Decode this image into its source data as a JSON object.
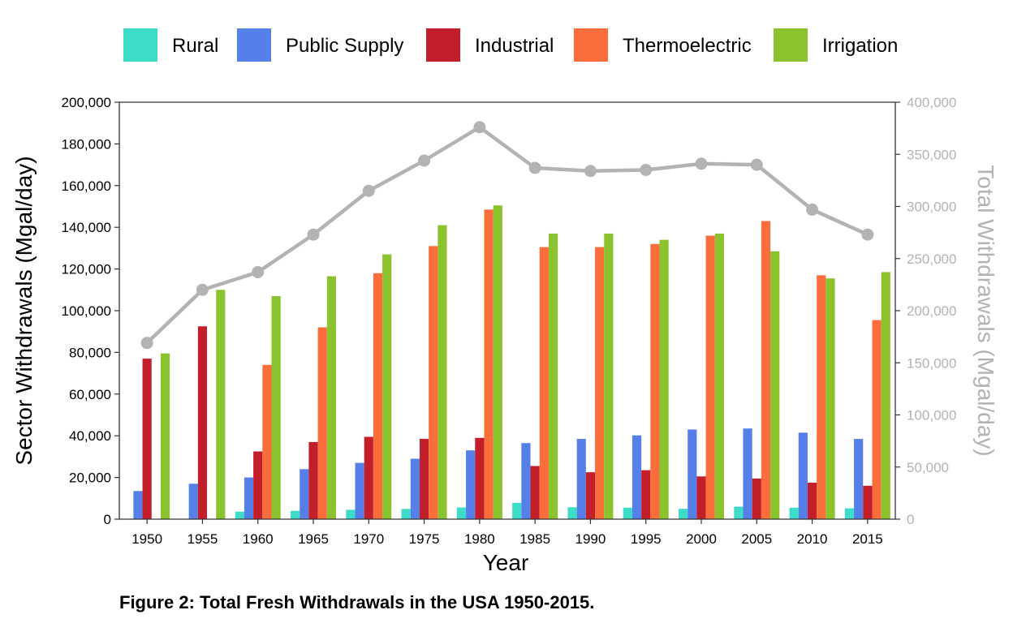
{
  "chart_data": {
    "type": "bar",
    "caption": "Figure 2: Total Fresh Withdrawals in the USA 1950-2015.",
    "xlabel": "Year",
    "ylabel": "Sector Withdrawals (Mgal/day)",
    "ylabel_right": "Total Withdrawals (Mgal/day)",
    "ylim": [
      0,
      200000
    ],
    "ylim_right": [
      0,
      400000
    ],
    "yticks": [
      "0",
      "20,000",
      "40,000",
      "60,000",
      "80,000",
      "100,000",
      "120,000",
      "140,000",
      "160,000",
      "180,000",
      "200,000"
    ],
    "yticks_right": [
      "0",
      "50,000",
      "100,000",
      "150,000",
      "200,000",
      "250,000",
      "300,000",
      "350,000",
      "400,000"
    ],
    "categories": [
      "1950",
      "1955",
      "1960",
      "1965",
      "1970",
      "1975",
      "1980",
      "1985",
      "1990",
      "1995",
      "2000",
      "2005",
      "2010",
      "2015"
    ],
    "legend_position": "top",
    "grid": false,
    "series": [
      {
        "name": "Rural",
        "color": "#3ddcc8",
        "values": [
          0,
          0,
          3600,
          4000,
          4500,
          4900,
          5600,
          7800,
          5700,
          5500,
          5000,
          6000,
          5500,
          5200
        ]
      },
      {
        "name": "Public Supply",
        "color": "#5580ea",
        "values": [
          13500,
          17000,
          20000,
          24000,
          27000,
          29000,
          33000,
          36500,
          38500,
          40200,
          43000,
          43500,
          41500,
          38500
        ]
      },
      {
        "name": "Industrial",
        "color": "#c31f2b",
        "values": [
          77000,
          92500,
          32500,
          37000,
          39500,
          38500,
          39000,
          25500,
          22500,
          23500,
          20500,
          19500,
          17500,
          16000
        ]
      },
      {
        "name": "Thermoelectric",
        "color": "#fb6d3a",
        "values": [
          0,
          0,
          74000,
          92000,
          118000,
          131000,
          148500,
          130500,
          130500,
          132000,
          136000,
          143000,
          117000,
          95500
        ]
      },
      {
        "name": "Irrigation",
        "color": "#8ac32e",
        "values": [
          79500,
          110000,
          107000,
          116500,
          127000,
          141000,
          150500,
          137000,
          137000,
          134000,
          137000,
          128500,
          115500,
          118500
        ]
      }
    ],
    "total_series": {
      "name": "Total",
      "axis": "right",
      "color": "#b3b3b3",
      "values": [
        169000,
        220000,
        237000,
        273000,
        315000,
        344000,
        376000,
        337000,
        334000,
        335000,
        341000,
        340000,
        297000,
        273000
      ]
    }
  }
}
